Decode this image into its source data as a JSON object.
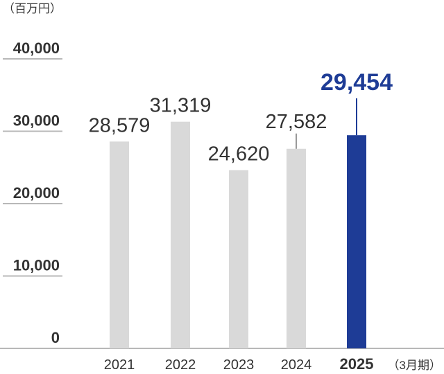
{
  "chart_data": {
    "type": "bar",
    "unit_label": "（百万円）",
    "period_label": "（3月期）",
    "categories": [
      "2021",
      "2022",
      "2023",
      "2024",
      "2025"
    ],
    "values": [
      28579,
      31319,
      24620,
      27582,
      29454
    ],
    "value_labels": [
      "28,579",
      "31,319",
      "24,620",
      "27,582",
      "29,454"
    ],
    "highlight_index": 4,
    "y_ticks": [
      0,
      10000,
      20000,
      30000,
      40000
    ],
    "y_tick_labels": [
      "0",
      "10,000",
      "20,000",
      "30,000",
      "40,000"
    ],
    "ylim": [
      0,
      40000
    ],
    "grid": false,
    "colors": {
      "bar": "#d9d9d9",
      "highlight": "#1e3c96",
      "text": "#333333",
      "axis_line": "#b8b8b8",
      "leader": "#777777"
    }
  }
}
